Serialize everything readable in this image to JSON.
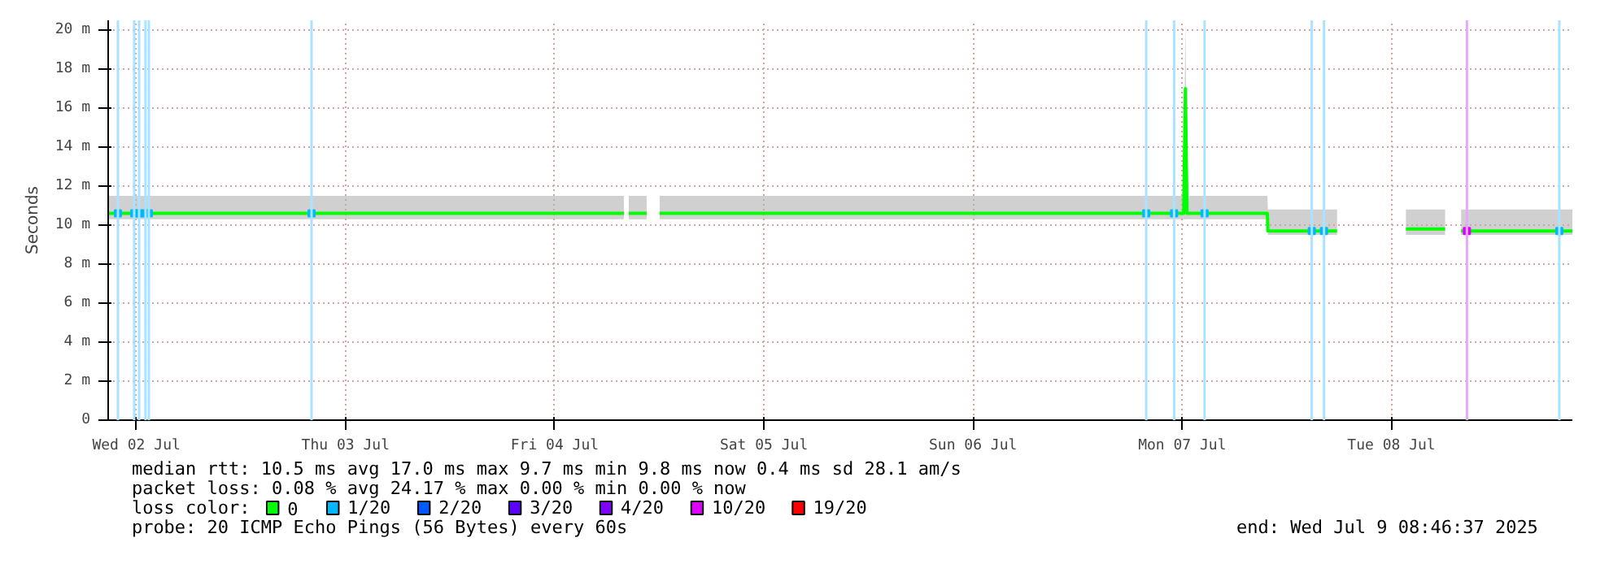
{
  "chart_data": {
    "type": "line",
    "ylabel": "Seconds",
    "legend_title": "loss color:",
    "legend": "bottom",
    "grid": true,
    "xlim": [
      "2025-07-02T08:46",
      "2025-07-09T08:46"
    ],
    "xticks": [
      {
        "value": "2025-07-02T12:00",
        "label": "Wed 02 Jul"
      },
      {
        "value": "2025-07-03T12:00",
        "label": "Thu 03 Jul"
      },
      {
        "value": "2025-07-04T12:00",
        "label": "Fri 04 Jul"
      },
      {
        "value": "2025-07-05T12:00",
        "label": "Sat 05 Jul"
      },
      {
        "value": "2025-07-06T12:00",
        "label": "Sun 06 Jul"
      },
      {
        "value": "2025-07-07T12:00",
        "label": "Mon 07 Jul"
      },
      {
        "value": "2025-07-08T12:00",
        "label": "Tue 08 Jul"
      }
    ],
    "ylim": [
      0,
      20.5
    ],
    "yticks": [
      0,
      {
        "value": 2,
        "label": "2 m"
      },
      {
        "value": 4,
        "label": "4 m"
      },
      {
        "value": 6,
        "label": "6 m"
      },
      {
        "value": 8,
        "label": "8 m"
      },
      {
        "value": 10,
        "label": "10 m"
      },
      {
        "value": 12,
        "label": "12 m"
      },
      {
        "value": 14,
        "label": "14 m"
      },
      {
        "value": 16,
        "label": "16 m"
      },
      {
        "value": 18,
        "label": "18 m"
      },
      {
        "value": 20,
        "label": "20 m"
      }
    ],
    "series": [
      {
        "name": "0",
        "color": "#00ff00",
        "x": [
          "2025-07-02T08:46",
          "2025-07-02T20:00",
          "2025-07-03T08:00",
          "2025-07-03T20:00",
          "2025-07-04T08:00",
          "2025-07-04T19:56",
          "2025-07-04T20:10",
          "2025-07-04T20:30",
          "2025-07-04T22:33",
          "2025-07-04T23:30",
          "2025-07-05T00:03",
          "2025-07-05T12:00",
          "2025-07-06T00:00",
          "2025-07-06T12:00",
          "2025-07-07T00:00",
          "2025-07-07T12:10",
          "2025-07-07T12:22",
          "2025-07-07T12:33",
          "2025-07-07T21:46",
          "2025-07-07T21:50",
          "2025-07-08T05:46",
          "2025-07-08T10:00",
          "2025-07-08T13:40",
          "2025-07-08T18:10",
          "2025-07-08T19:00",
          "2025-07-08T20:00",
          "2025-07-09T08:46"
        ],
        "values": [
          10.6,
          10.6,
          10.6,
          10.6,
          10.6,
          10.6,
          null,
          10.6,
          10.6,
          null,
          10.6,
          10.6,
          10.6,
          10.6,
          10.6,
          10.6,
          17.0,
          10.6,
          10.6,
          9.7,
          9.7,
          null,
          9.8,
          9.8,
          null,
          9.7,
          9.7
        ],
        "lower": [
          10.3,
          10.3,
          10.3,
          10.3,
          10.3,
          10.3,
          null,
          10.3,
          10.3,
          null,
          10.3,
          10.3,
          10.3,
          10.3,
          10.3,
          10.3,
          10.3,
          10.3,
          10.3,
          9.5,
          9.5,
          null,
          9.5,
          9.5,
          null,
          9.5,
          9.5
        ],
        "upper": [
          11.5,
          11.5,
          11.5,
          11.5,
          11.5,
          11.5,
          null,
          11.5,
          11.5,
          null,
          11.5,
          11.5,
          11.5,
          11.5,
          11.5,
          11.5,
          20.5,
          11.5,
          11.5,
          10.8,
          10.8,
          null,
          10.8,
          10.8,
          null,
          10.8,
          10.8
        ]
      },
      {
        "name": "1/20",
        "color": "#00b8ff",
        "type": "scatter",
        "x": [
          "2025-07-02T09:53",
          "2025-07-02T11:45",
          "2025-07-02T12:19",
          "2025-07-02T13:03",
          "2025-07-02T13:26",
          "2025-07-03T08:06",
          "2025-07-07T07:52",
          "2025-07-07T11:04",
          "2025-07-07T14:34",
          "2025-07-08T02:52",
          "2025-07-08T04:16",
          "2025-07-09T07:16"
        ],
        "values": [
          10.6,
          10.6,
          10.6,
          10.6,
          10.6,
          10.6,
          10.6,
          10.6,
          10.6,
          9.7,
          9.7,
          9.7
        ]
      },
      {
        "name": "2/20",
        "color": "#0059ff",
        "type": "scatter"
      },
      {
        "name": "3/20",
        "color": "#5e00ff",
        "type": "scatter"
      },
      {
        "name": "4/20",
        "color": "#7e00ff",
        "type": "scatter"
      },
      {
        "name": "10/20",
        "color": "#dd00ff",
        "type": "scatter",
        "x": [
          "2025-07-08T20:40"
        ],
        "values": [
          9.7
        ]
      },
      {
        "name": "19/20",
        "color": "#ff0000",
        "type": "scatter"
      }
    ],
    "ref_lines": [
      {
        "axis": "x",
        "value": "2025-07-02T09:53",
        "color": "#a8e4ff"
      },
      {
        "axis": "x",
        "value": "2025-07-02T11:45",
        "color": "#a8e4ff"
      },
      {
        "axis": "x",
        "value": "2025-07-02T12:19",
        "color": "#a8e4ff"
      },
      {
        "axis": "x",
        "value": "2025-07-02T13:03",
        "color": "#a8e4ff"
      },
      {
        "axis": "x",
        "value": "2025-07-02T13:26",
        "color": "#a8e4ff"
      },
      {
        "axis": "x",
        "value": "2025-07-03T08:06",
        "color": "#a8e4ff"
      },
      {
        "axis": "x",
        "value": "2025-07-07T07:52",
        "color": "#a8e4ff"
      },
      {
        "axis": "x",
        "value": "2025-07-07T11:04",
        "color": "#a8e4ff"
      },
      {
        "axis": "x",
        "value": "2025-07-07T14:34",
        "color": "#a8e4ff"
      },
      {
        "axis": "x",
        "value": "2025-07-08T02:52",
        "color": "#a8e4ff"
      },
      {
        "axis": "x",
        "value": "2025-07-08T04:16",
        "color": "#a8e4ff"
      },
      {
        "axis": "x",
        "value": "2025-07-09T07:16",
        "color": "#a8e4ff"
      },
      {
        "axis": "x",
        "value": "2025-07-08T20:40",
        "color": "#e4a8ff"
      }
    ],
    "annotations": [
      "median rtt:  10.5 ms avg  17.0 ms max  9.7 ms min  9.8 ms now  0.4 ms sd  28.1   am/s",
      "packet loss: 0.08 % avg  24.17 % max  0.00 % min  0.00 % now",
      "probe:       20 ICMP Echo Pings (56 Bytes) every 60s",
      "end: Wed Jul  9 08:46:37 2025"
    ]
  }
}
